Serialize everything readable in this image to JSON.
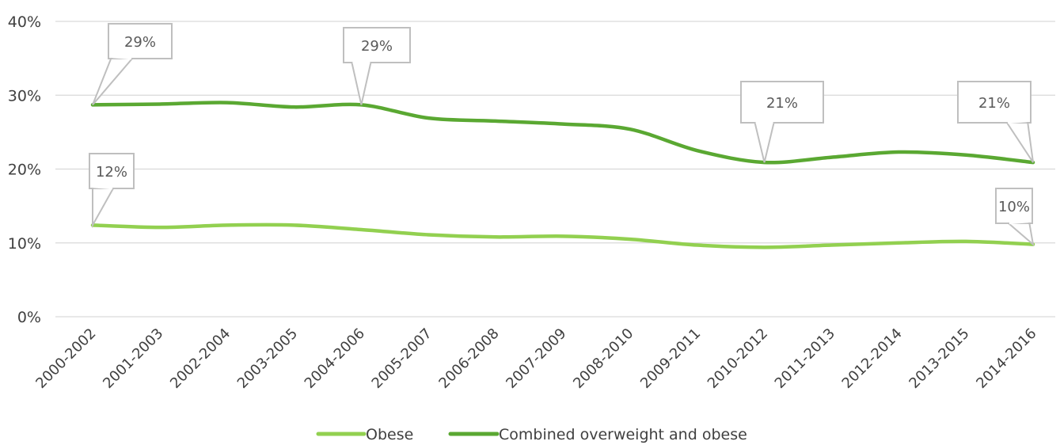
{
  "chart_data": {
    "type": "line",
    "title": "",
    "xlabel": "",
    "ylabel": "",
    "categories": [
      "2000-2002",
      "2001-2003",
      "2002-2004",
      "2003-2005",
      "2004-2006",
      "2005-2007",
      "2006-2008",
      "2007-2009",
      "2008-2010",
      "2009-2011",
      "2010-2012",
      "2011-2013",
      "2012-2014",
      "2013-2015",
      "2014-2016"
    ],
    "ylim": [
      0,
      40
    ],
    "yticks": [
      0,
      10,
      20,
      30,
      40
    ],
    "ytick_labels": [
      "0%",
      "10%",
      "20%",
      "30%",
      "40%"
    ],
    "grid": true,
    "legend_position": "bottom",
    "series": [
      {
        "name": "Obese",
        "color": "#92d050",
        "values": [
          12.4,
          12.1,
          12.4,
          12.4,
          11.8,
          11.1,
          10.8,
          10.9,
          10.5,
          9.7,
          9.4,
          9.7,
          10.0,
          10.2,
          9.8
        ]
      },
      {
        "name": "Combined overweight and obese",
        "color": "#5aa832",
        "values": [
          28.7,
          28.8,
          29.0,
          28.4,
          28.7,
          26.9,
          26.5,
          26.1,
          25.4,
          22.5,
          20.9,
          21.6,
          22.3,
          21.9,
          20.9
        ]
      }
    ],
    "annotations": [
      {
        "series": 1,
        "index": 0,
        "text": "29%"
      },
      {
        "series": 1,
        "index": 4,
        "text": "29%"
      },
      {
        "series": 1,
        "index": 10,
        "text": "21%"
      },
      {
        "series": 1,
        "index": 14,
        "text": "21%"
      },
      {
        "series": 0,
        "index": 0,
        "text": "12%"
      },
      {
        "series": 0,
        "index": 14,
        "text": "10%"
      }
    ]
  }
}
